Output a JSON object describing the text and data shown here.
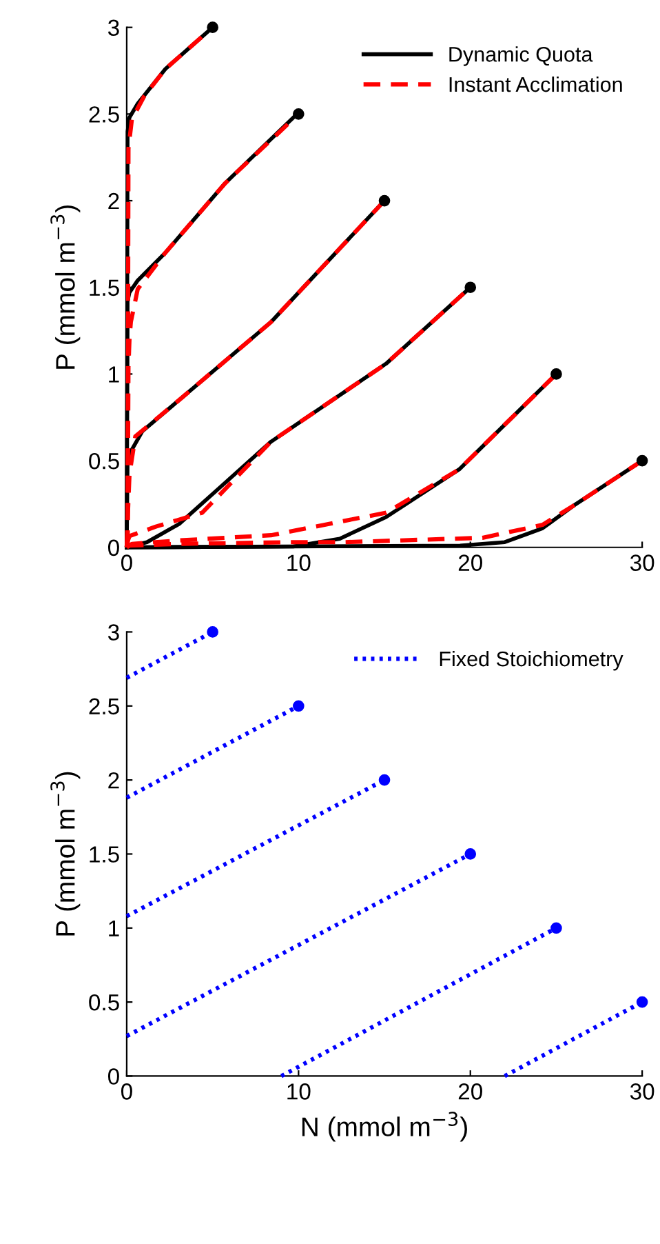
{
  "chart_data": [
    {
      "type": "line",
      "ylabel": "P (mmol m$^{−3}$)",
      "xlim": [
        0,
        30
      ],
      "ylim": [
        0,
        3
      ],
      "xticks": [
        0,
        10,
        20,
        30
      ],
      "yticks": [
        0,
        0.5,
        1,
        1.5,
        2,
        2.5,
        3
      ],
      "legend": "top right",
      "grid": false,
      "series": [
        {
          "name": "Dynamic Quota",
          "color": "#000000",
          "line_style": "solid",
          "x": [
            0,
            0.05,
            0.16,
            0.64,
            2.25,
            5
          ],
          "values": [
            0,
            2.4,
            2.48,
            2.56,
            2.76,
            3
          ]
        },
        {
          "color": "#000000",
          "line_style": "solid",
          "x": [
            0,
            0.05,
            0.16,
            0.64,
            2.25,
            5.72,
            9.8,
            10
          ],
          "values": [
            0,
            1.42,
            1.47,
            1.54,
            1.7,
            2.1,
            2.49,
            2.5
          ]
        },
        {
          "color": "#000000",
          "line_style": "solid",
          "x": [
            0,
            0.05,
            0.16,
            0.91,
            3.05,
            8.4,
            15
          ],
          "values": [
            0,
            0.5,
            0.54,
            0.67,
            0.85,
            1.3,
            2
          ]
        },
        {
          "color": "#000000",
          "line_style": "solid",
          "x": [
            0,
            1.18,
            3.05,
            5.7,
            8.4,
            15.1,
            20
          ],
          "values": [
            0,
            0.03,
            0.135,
            0.37,
            0.61,
            1.06,
            1.5
          ]
        },
        {
          "color": "#000000",
          "line_style": "solid",
          "x": [
            0,
            9.7,
            12.4,
            15.1,
            19.35,
            25
          ],
          "values": [
            0,
            0.005,
            0.05,
            0.175,
            0.45,
            1
          ]
        },
        {
          "color": "#000000",
          "line_style": "solid",
          "x": [
            0,
            19.4,
            22,
            24.2,
            26,
            30
          ],
          "values": [
            0,
            0.01,
            0.03,
            0.11,
            0.24,
            0.5
          ]
        },
        {
          "name": "Instant Acclimation",
          "color": "#ff0000",
          "line_style": "dashed",
          "x": [
            0.05,
            0.1,
            0.3,
            1,
            2.25,
            5
          ],
          "values": [
            0,
            2.3,
            2.47,
            2.6,
            2.76,
            3
          ]
        },
        {
          "color": "#ff0000",
          "line_style": "dashed",
          "x": [
            0.05,
            0.1,
            0.16,
            0.24,
            0.64,
            2.25,
            5.72,
            10
          ],
          "values": [
            0,
            1.04,
            1.2,
            1.3,
            1.49,
            1.7,
            2.1,
            2.5
          ]
        },
        {
          "color": "#ff0000",
          "line_style": "dashed",
          "x": [
            0,
            0.05,
            0.16,
            0.5,
            3.05,
            8.4,
            15
          ],
          "values": [
            0,
            0.15,
            0.42,
            0.64,
            0.85,
            1.3,
            2
          ]
        },
        {
          "color": "#ff0000",
          "line_style": "dashed",
          "x": [
            0,
            0.16,
            1.7,
            4.4,
            8.4,
            15.1,
            20
          ],
          "values": [
            0.02,
            0.065,
            0.12,
            0.2,
            0.61,
            1.06,
            1.5
          ]
        },
        {
          "color": "#ff0000",
          "line_style": "dashed",
          "x": [
            0,
            0.3,
            3.05,
            8.4,
            15.1,
            19.35,
            25
          ],
          "values": [
            0,
            0.02,
            0.04,
            0.07,
            0.2,
            0.45,
            1
          ]
        },
        {
          "color": "#ff0000",
          "line_style": "dashed",
          "x": [
            0,
            3,
            9.7,
            12.7,
            20.7,
            24.2,
            26,
            30
          ],
          "values": [
            0.01,
            0.02,
            0.03,
            0.03,
            0.055,
            0.13,
            0.24,
            0.5
          ]
        },
        {
          "type": "scatter",
          "marker": "circle",
          "color": "#000000",
          "x": [
            5,
            10,
            15,
            20,
            25,
            30
          ],
          "values": [
            3,
            2.5,
            2,
            1.5,
            1,
            0.5
          ]
        }
      ]
    },
    {
      "type": "line",
      "xlabel": "N (mmol m$^{−3}$)",
      "ylabel": "P (mmol m$^{−3}$)",
      "xlim": [
        0,
        30
      ],
      "ylim": [
        0,
        3
      ],
      "xticks": [
        0,
        10,
        20,
        30
      ],
      "yticks": [
        0,
        0.5,
        1,
        1.5,
        2,
        2.5,
        3
      ],
      "legend": "top right",
      "grid": false,
      "series": [
        {
          "name": "Fixed Stoichiometry",
          "color": "#0000ff",
          "line_style": "dotted",
          "x": [
            0,
            5
          ],
          "values": [
            2.69,
            3
          ]
        },
        {
          "color": "#0000ff",
          "line_style": "dotted",
          "x": [
            0,
            10
          ],
          "values": [
            1.88,
            2.5
          ]
        },
        {
          "color": "#0000ff",
          "line_style": "dotted",
          "x": [
            0,
            15
          ],
          "values": [
            1.08,
            2
          ]
        },
        {
          "color": "#0000ff",
          "line_style": "dotted",
          "x": [
            0,
            20
          ],
          "values": [
            0.27,
            1.5
          ]
        },
        {
          "color": "#0000ff",
          "line_style": "dotted",
          "x": [
            9,
            25
          ],
          "values": [
            0,
            1
          ]
        },
        {
          "color": "#0000ff",
          "line_style": "dotted",
          "x": [
            22,
            30
          ],
          "values": [
            0,
            0.5
          ]
        },
        {
          "type": "scatter",
          "marker": "circle",
          "color": "#0000ff",
          "x": [
            5,
            10,
            15,
            20,
            25,
            30
          ],
          "values": [
            3,
            2.5,
            2,
            1.5,
            1,
            0.5
          ]
        }
      ]
    }
  ]
}
